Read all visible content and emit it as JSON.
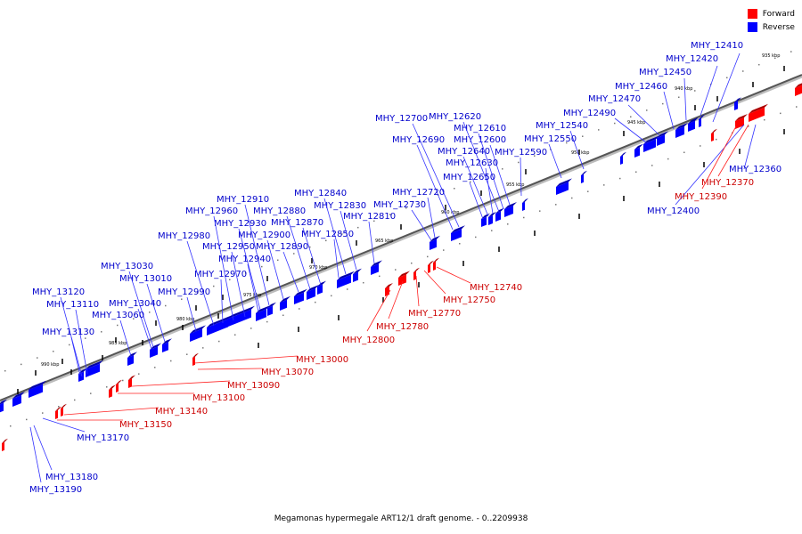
{
  "legend": {
    "forward_label": "Forward",
    "reverse_label": "Reverse",
    "forward_color": "#ff0000",
    "reverse_color": "#0000ff"
  },
  "caption": "Megamonas hypermegale ART12/1 draft genome. - 0..2209938",
  "ticks": [
    "935 kbp",
    "940 kbp",
    "945 kbp",
    "950 kbp",
    "955 kbp",
    "960 kbp",
    "965 kbp",
    "970 kbp",
    "975 kbp",
    "980 kbp",
    "985 kbp",
    "990 kbp"
  ],
  "reverse_genes": [
    "MHY_12360",
    "MHY_12400",
    "MHY_12410",
    "MHY_12420",
    "MHY_12450",
    "MHY_12460",
    "MHY_12470",
    "MHY_12490",
    "MHY_12540",
    "MHY_12550",
    "MHY_12590",
    "MHY_12600",
    "MHY_12610",
    "MHY_12620",
    "MHY_12630",
    "MHY_12640",
    "MHY_12650",
    "MHY_12690",
    "MHY_12700",
    "MHY_12720",
    "MHY_12730",
    "MHY_12810",
    "MHY_12830",
    "MHY_12840",
    "MHY_12850",
    "MHY_12870",
    "MHY_12880",
    "MHY_12890",
    "MHY_12900",
    "MHY_12910",
    "MHY_12930",
    "MHY_12940",
    "MHY_12950",
    "MHY_12960",
    "MHY_12970",
    "MHY_12980",
    "MHY_12990",
    "MHY_13010",
    "MHY_13030",
    "MHY_13040",
    "MHY_13060",
    "MHY_13110",
    "MHY_13120",
    "MHY_13130",
    "MHY_13170",
    "MHY_13180",
    "MHY_13190"
  ],
  "forward_genes": [
    "MHY_12370",
    "MHY_12390",
    "MHY_12740",
    "MHY_12750",
    "MHY_12770",
    "MHY_12780",
    "MHY_12800",
    "MHY_13000",
    "MHY_13070",
    "MHY_13090",
    "MHY_13100",
    "MHY_13140",
    "MHY_13150"
  ]
}
